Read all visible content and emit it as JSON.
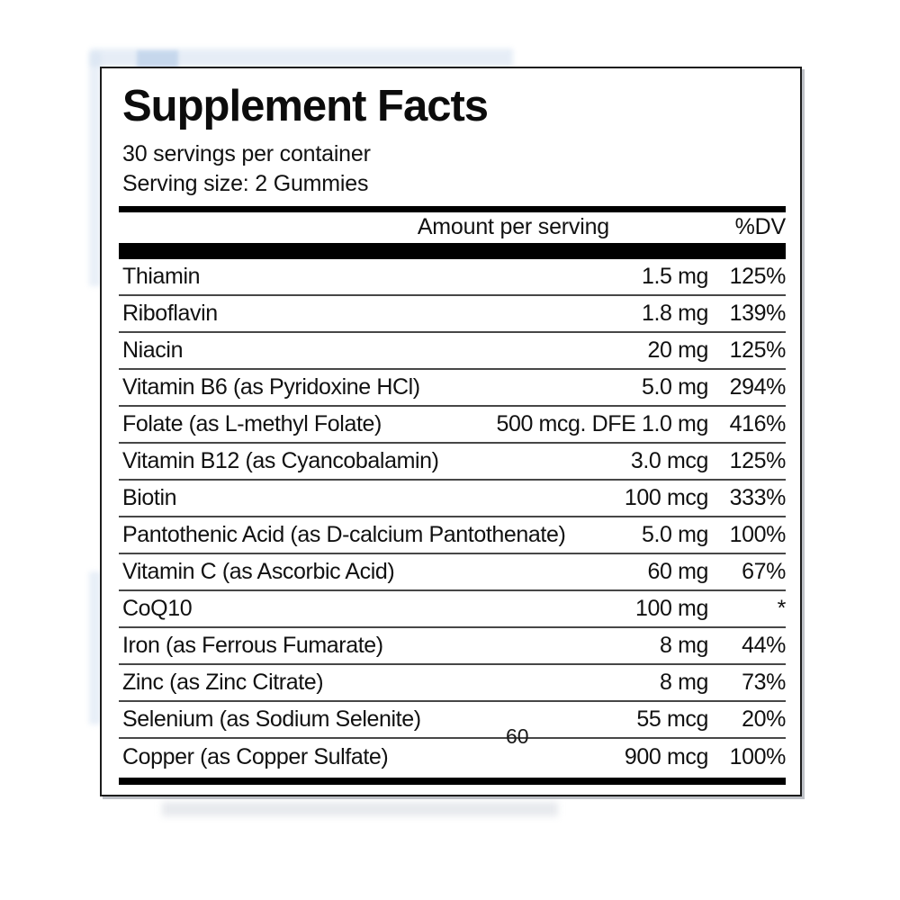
{
  "label": {
    "title": "Supplement Facts",
    "servings_per_container": "30 servings per container",
    "serving_size": "Serving size: 2 Gummies",
    "columns": {
      "amount": "Amount per serving",
      "dv": "%DV"
    },
    "rows": [
      {
        "name": "Thiamin",
        "amount": "1.5 mg",
        "dv": "125%"
      },
      {
        "name": "Riboflavin",
        "amount": "1.8 mg",
        "dv": "139%"
      },
      {
        "name": "Niacin",
        "amount": "20 mg",
        "dv": "125%"
      },
      {
        "name": "Vitamin B6 (as Pyridoxine HCl)",
        "amount": "5.0 mg",
        "dv": "294%"
      },
      {
        "name": "Folate (as L-methyl Folate)",
        "amount": "500 mcg. DFE 1.0 mg",
        "dv": "416%"
      },
      {
        "name": "Vitamin B12 (as Cyancobalamin)",
        "amount": "3.0 mcg",
        "dv": "125%"
      },
      {
        "name": "Biotin",
        "amount": "100 mcg",
        "dv": "333%"
      },
      {
        "name": "Pantothenic Acid (as D-calcium Pantothenate)",
        "amount": "5.0 mg",
        "dv": "100%"
      },
      {
        "name": "Vitamin C (as Ascorbic Acid)",
        "amount": "60 mg",
        "dv": "67%"
      },
      {
        "name": "CoQ10",
        "amount": "100 mg",
        "dv": "*"
      },
      {
        "name": "Iron (as Ferrous Fumarate)",
        "amount": "8 mg",
        "dv": "44%"
      },
      {
        "name": "Zinc (as Zinc Citrate)",
        "amount": "8 mg",
        "dv": "73%"
      },
      {
        "name": "Selenium (as Sodium Selenite)",
        "amount": "55 mcg",
        "dv": "20%"
      },
      {
        "name": "Copper (as Copper Sulfate)",
        "amount": "900 mcg",
        "dv": "100%"
      }
    ],
    "overlay_text": "60"
  },
  "colors": {
    "text": "#111111",
    "bar": "#000000",
    "divider": "#474747",
    "card_border": "#1c1c1c",
    "scan_tint": "#d3e0f0"
  }
}
